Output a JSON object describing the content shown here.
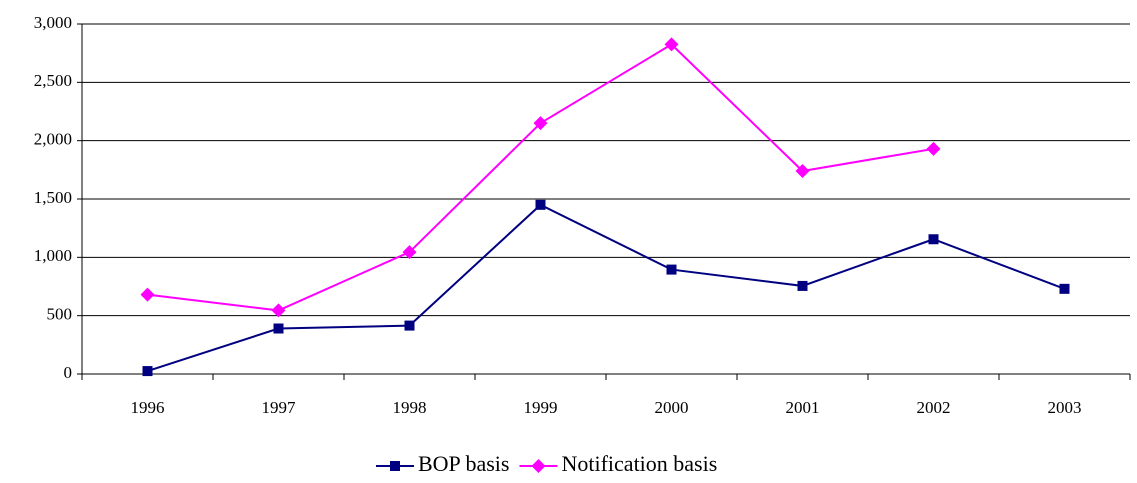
{
  "chart_data": {
    "type": "line",
    "categories": [
      "1996",
      "1997",
      "1998",
      "1999",
      "2000",
      "2001",
      "2002",
      "2003"
    ],
    "series": [
      {
        "name": "BOP basis",
        "color": "#000080",
        "marker": "square",
        "values": [
          25,
          390,
          415,
          1450,
          895,
          755,
          1155,
          730
        ]
      },
      {
        "name": "Notification basis",
        "color": "#ff00ff",
        "marker": "diamond",
        "values": [
          680,
          545,
          1045,
          2150,
          2825,
          1740,
          1930,
          null
        ]
      }
    ],
    "ylim": [
      0,
      3000
    ],
    "yticks": [
      0,
      500,
      {
        "value": 1000,
        "label": "1,000"
      },
      {
        "value": 1500,
        "label": "1,500"
      },
      {
        "value": 2000,
        "label": "2,000"
      },
      {
        "value": 2500,
        "label": "2,500"
      },
      {
        "value": 3000,
        "label": "3,000"
      }
    ],
    "grid": true,
    "legend": "bottom"
  }
}
